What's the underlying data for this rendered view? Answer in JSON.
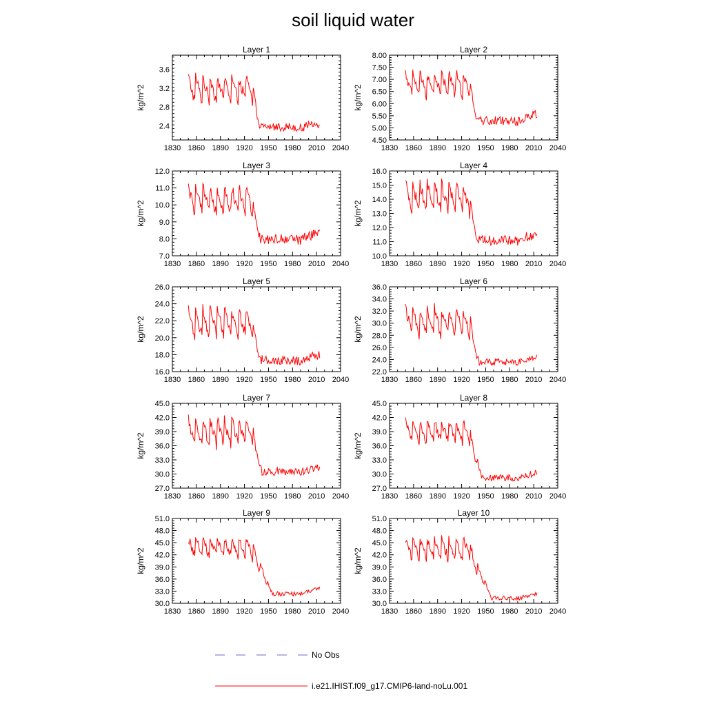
{
  "title": "soil liquid water",
  "colors": {
    "model_line": "#ff0000",
    "obs_line": "#6a6ad0",
    "axis": "#000000",
    "background": "#ffffff"
  },
  "legend": {
    "obs_label": "No Obs",
    "model_label": "i.e21.IHIST.f09_g17.CMIP6-land-noLu.001",
    "obs_style": "dashed",
    "placement": "bottom-center"
  },
  "chart_data": [
    {
      "type": "line",
      "title": "Layer 1",
      "ylabel": "kg/m^2",
      "xlim": [
        1830,
        2040
      ],
      "xticks": [
        1830,
        1860,
        1890,
        1920,
        1950,
        1980,
        2010,
        2040
      ],
      "ylim": [
        2.1,
        3.9
      ],
      "yticks": [
        2.4,
        2.8,
        3.2,
        3.6
      ],
      "ytick_labels": [
        "2.4",
        "2.8",
        "3.2",
        "3.6"
      ],
      "series": [
        {
          "name": "i.e21.IHIST.f09_g17.CMIP6-land-noLu.001",
          "start_year": 1850,
          "end_year": 2014,
          "regime": {
            "high_mean": 3.15,
            "high_amp": 0.45,
            "trans_start": 1928,
            "trans_end": 1940,
            "low_mean": 2.38,
            "low_amp": 0.09,
            "end_trend": 0.06
          }
        }
      ]
    },
    {
      "type": "line",
      "title": "Layer 2",
      "ylabel": "kg/m^2",
      "xlim": [
        1830,
        2040
      ],
      "xticks": [
        1830,
        1860,
        1890,
        1920,
        1950,
        1980,
        2010,
        2040
      ],
      "ylim": [
        4.5,
        8.0
      ],
      "yticks": [
        4.5,
        5.0,
        5.5,
        6.0,
        6.5,
        7.0,
        7.5,
        8.0
      ],
      "ytick_labels": [
        "4.50",
        "5.00",
        "5.50",
        "6.00",
        "6.50",
        "7.00",
        "7.50",
        "8.00"
      ],
      "series": [
        {
          "name": "i.e21.IHIST.f09_g17.CMIP6-land-noLu.001",
          "start_year": 1850,
          "end_year": 2014,
          "regime": {
            "high_mean": 6.75,
            "high_amp": 0.8,
            "trans_start": 1928,
            "trans_end": 1940,
            "low_mean": 5.3,
            "low_amp": 0.18,
            "end_trend": 0.3
          }
        }
      ]
    },
    {
      "type": "line",
      "title": "Layer 3",
      "ylabel": "kg/m^2",
      "xlim": [
        1830,
        2040
      ],
      "xticks": [
        1830,
        1860,
        1890,
        1920,
        1950,
        1980,
        2010,
        2040
      ],
      "ylim": [
        7.0,
        12.0
      ],
      "yticks": [
        7,
        8,
        9,
        10,
        11,
        12
      ],
      "ytick_labels": [
        "7.0",
        "8.0",
        "9.0",
        "10.0",
        "11.0",
        "12.0"
      ],
      "series": [
        {
          "name": "i.e21.IHIST.f09_g17.CMIP6-land-noLu.001",
          "start_year": 1850,
          "end_year": 2014,
          "regime": {
            "high_mean": 10.2,
            "high_amp": 1.3,
            "trans_start": 1928,
            "trans_end": 1940,
            "low_mean": 8.0,
            "low_amp": 0.3,
            "end_trend": 0.4
          }
        }
      ]
    },
    {
      "type": "line",
      "title": "Layer 4",
      "ylabel": "kg/m^2",
      "xlim": [
        1830,
        2040
      ],
      "xticks": [
        1830,
        1860,
        1890,
        1920,
        1950,
        1980,
        2010,
        2040
      ],
      "ylim": [
        10.0,
        16.0
      ],
      "yticks": [
        10,
        11,
        12,
        13,
        14,
        15,
        16
      ],
      "ytick_labels": [
        "10.0",
        "11.0",
        "12.0",
        "13.0",
        "14.0",
        "15.0",
        "16.0"
      ],
      "series": [
        {
          "name": "i.e21.IHIST.f09_g17.CMIP6-land-noLu.001",
          "start_year": 1850,
          "end_year": 2014,
          "regime": {
            "high_mean": 14.0,
            "high_amp": 1.6,
            "trans_start": 1928,
            "trans_end": 1940,
            "low_mean": 11.1,
            "low_amp": 0.35,
            "end_trend": 0.5
          }
        }
      ]
    },
    {
      "type": "line",
      "title": "Layer 5",
      "ylabel": "kg/m^2",
      "xlim": [
        1830,
        2040
      ],
      "xticks": [
        1830,
        1860,
        1890,
        1920,
        1950,
        1980,
        2010,
        2040
      ],
      "ylim": [
        16.0,
        26.0
      ],
      "yticks": [
        16,
        18,
        20,
        22,
        24,
        26
      ],
      "ytick_labels": [
        "16.0",
        "18.0",
        "20.0",
        "22.0",
        "24.0",
        "26.0"
      ],
      "series": [
        {
          "name": "i.e21.IHIST.f09_g17.CMIP6-land-noLu.001",
          "start_year": 1850,
          "end_year": 2014,
          "regime": {
            "high_mean": 21.6,
            "high_amp": 2.6,
            "trans_start": 1928,
            "trans_end": 1940,
            "low_mean": 17.4,
            "low_amp": 0.55,
            "end_trend": 0.6
          }
        }
      ]
    },
    {
      "type": "line",
      "title": "Layer 6",
      "ylabel": "kg/m^2",
      "xlim": [
        1830,
        2040
      ],
      "xticks": [
        1830,
        1860,
        1890,
        1920,
        1950,
        1980,
        2010,
        2040
      ],
      "ylim": [
        22.0,
        36.0
      ],
      "yticks": [
        22,
        24,
        26,
        28,
        30,
        32,
        34,
        36
      ],
      "ytick_labels": [
        "22.0",
        "24.0",
        "26.0",
        "28.0",
        "30.0",
        "32.0",
        "34.0",
        "36.0"
      ],
      "series": [
        {
          "name": "i.e21.IHIST.f09_g17.CMIP6-land-noLu.001",
          "start_year": 1850,
          "end_year": 2014,
          "regime": {
            "high_mean": 30.0,
            "high_amp": 3.6,
            "trans_start": 1928,
            "trans_end": 1942,
            "low_mean": 23.6,
            "low_amp": 0.55,
            "end_trend": 0.8
          }
        }
      ]
    },
    {
      "type": "line",
      "title": "Layer 7",
      "ylabel": "kg/m^2",
      "xlim": [
        1830,
        2040
      ],
      "xticks": [
        1830,
        1860,
        1890,
        1920,
        1950,
        1980,
        2010,
        2040
      ],
      "ylim": [
        27.0,
        45.0
      ],
      "yticks": [
        27,
        30,
        33,
        36,
        39,
        42,
        45
      ],
      "ytick_labels": [
        "27.0",
        "30.0",
        "33.0",
        "36.0",
        "39.0",
        "42.0",
        "45.0"
      ],
      "series": [
        {
          "name": "i.e21.IHIST.f09_g17.CMIP6-land-noLu.001",
          "start_year": 1850,
          "end_year": 2014,
          "regime": {
            "high_mean": 38.5,
            "high_amp": 4.6,
            "trans_start": 1928,
            "trans_end": 1942,
            "low_mean": 30.5,
            "low_amp": 0.9,
            "end_trend": 1.0
          }
        }
      ]
    },
    {
      "type": "line",
      "title": "Layer 8",
      "ylabel": "kg/m^2",
      "xlim": [
        1830,
        2040
      ],
      "xticks": [
        1830,
        1860,
        1890,
        1920,
        1950,
        1980,
        2010,
        2040
      ],
      "ylim": [
        27.0,
        45.0
      ],
      "yticks": [
        27,
        30,
        33,
        36,
        39,
        42,
        45
      ],
      "ytick_labels": [
        "27.0",
        "30.0",
        "33.0",
        "36.0",
        "39.0",
        "42.0",
        "45.0"
      ],
      "series": [
        {
          "name": "i.e21.IHIST.f09_g17.CMIP6-land-noLu.001",
          "start_year": 1850,
          "end_year": 2014,
          "regime": {
            "high_mean": 38.7,
            "high_amp": 3.6,
            "trans_start": 1928,
            "trans_end": 1945,
            "low_mean": 29.2,
            "low_amp": 0.65,
            "end_trend": 1.0
          }
        }
      ]
    },
    {
      "type": "line",
      "title": "Layer 9",
      "ylabel": "kg/m^2",
      "xlim": [
        1830,
        2040
      ],
      "xticks": [
        1830,
        1860,
        1890,
        1920,
        1950,
        1980,
        2010,
        2040
      ],
      "ylim": [
        30.0,
        51.0
      ],
      "yticks": [
        30,
        33,
        36,
        39,
        42,
        45,
        48,
        51
      ],
      "ytick_labels": [
        "30.0",
        "33.0",
        "36.0",
        "39.0",
        "42.0",
        "45.0",
        "48.0",
        "51.0"
      ],
      "series": [
        {
          "name": "i.e21.IHIST.f09_g17.CMIP6-land-noLu.001",
          "start_year": 1850,
          "end_year": 2014,
          "regime": {
            "high_mean": 43.6,
            "high_amp": 3.8,
            "trans_start": 1928,
            "trans_end": 1955,
            "low_mean": 32.4,
            "low_amp": 0.6,
            "end_trend": 1.2
          }
        }
      ]
    },
    {
      "type": "line",
      "title": "Layer 10",
      "ylabel": "kg/m^2",
      "xlim": [
        1830,
        2040
      ],
      "xticks": [
        1830,
        1860,
        1890,
        1920,
        1950,
        1980,
        2010,
        2040
      ],
      "ylim": [
        30.0,
        51.0
      ],
      "yticks": [
        30,
        33,
        36,
        39,
        42,
        45,
        48,
        51
      ],
      "ytick_labels": [
        "30.0",
        "33.0",
        "36.0",
        "39.0",
        "42.0",
        "45.0",
        "48.0",
        "51.0"
      ],
      "series": [
        {
          "name": "i.e21.IHIST.f09_g17.CMIP6-land-noLu.001",
          "start_year": 1850,
          "end_year": 2014,
          "regime": {
            "high_mean": 43.3,
            "high_amp": 4.4,
            "trans_start": 1928,
            "trans_end": 1958,
            "low_mean": 31.3,
            "low_amp": 0.55,
            "end_trend": 1.2
          }
        }
      ]
    }
  ]
}
